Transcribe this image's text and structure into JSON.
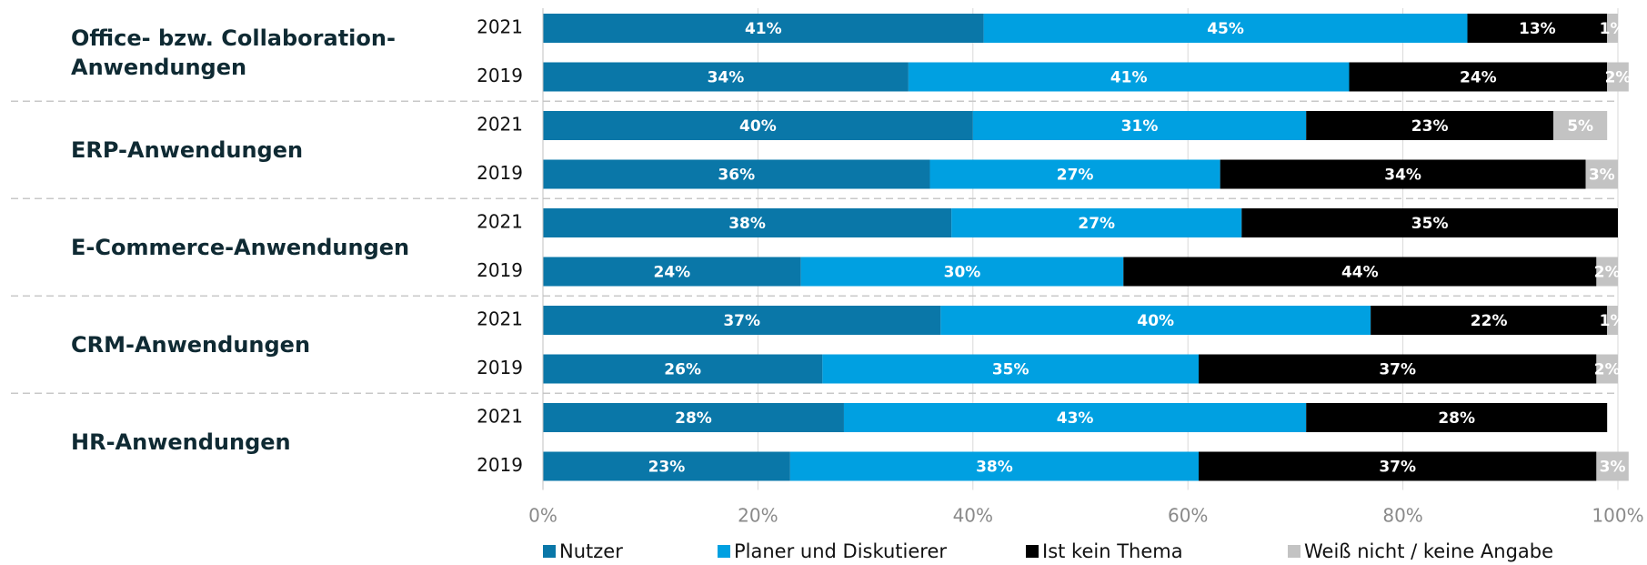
{
  "chart_data": {
    "type": "stacked_barh",
    "group_labels": [
      "Office- bzw. Collaboration-Anwendungen",
      "ERP-Anwendungen",
      "E-Commerce-Anwendungen",
      "CRM-Anwendungen",
      "HR-Anwendungen"
    ],
    "categories": [
      "2021",
      "2019",
      "2021",
      "2019",
      "2021",
      "2019",
      "2021",
      "2019",
      "2021",
      "2019"
    ],
    "series": [
      {
        "name": "Nutzer",
        "color": "#0a77a8",
        "values": [
          41,
          34,
          40,
          36,
          38,
          24,
          37,
          26,
          28,
          23
        ],
        "value_labels": [
          "41%",
          "34%",
          "40%",
          "36%",
          "38%",
          "24%",
          "37%",
          "26%",
          "28%",
          "23%"
        ]
      },
      {
        "name": "Planer und Diskutierer",
        "color": "#00a0e1",
        "values": [
          45,
          41,
          31,
          27,
          27,
          30,
          40,
          35,
          43,
          38
        ],
        "value_labels": [
          "45%",
          "41%",
          "31%",
          "27%",
          "27%",
          "30%",
          "40%",
          "35%",
          "43%",
          "38%"
        ]
      },
      {
        "name": "Ist kein Thema",
        "color": "#000000",
        "values": [
          13,
          24,
          23,
          34,
          35,
          44,
          22,
          37,
          28,
          37
        ],
        "value_labels": [
          "13%",
          "24%",
          "23%",
          "34%",
          "35%",
          "44%",
          "22%",
          "37%",
          "28%",
          "37%"
        ]
      },
      {
        "name": "Weiß nicht / keine Angabe",
        "color": "#c3c3c3",
        "values": [
          1,
          2,
          5,
          3,
          null,
          2,
          1,
          2,
          null,
          3
        ],
        "value_labels": [
          "1%",
          "2%",
          "5%",
          "3%",
          null,
          "2%",
          "1%",
          "2%",
          null,
          "3%"
        ]
      }
    ],
    "xlim": [
      0,
      100
    ],
    "xticks": [
      {
        "value": 0,
        "label": "0%"
      },
      {
        "value": 20,
        "label": "20%"
      },
      {
        "value": 40,
        "label": "40%"
      },
      {
        "value": 60,
        "label": "60%"
      },
      {
        "value": 80,
        "label": "80%"
      },
      {
        "value": 100,
        "label": "100%"
      }
    ],
    "grid": true
  }
}
